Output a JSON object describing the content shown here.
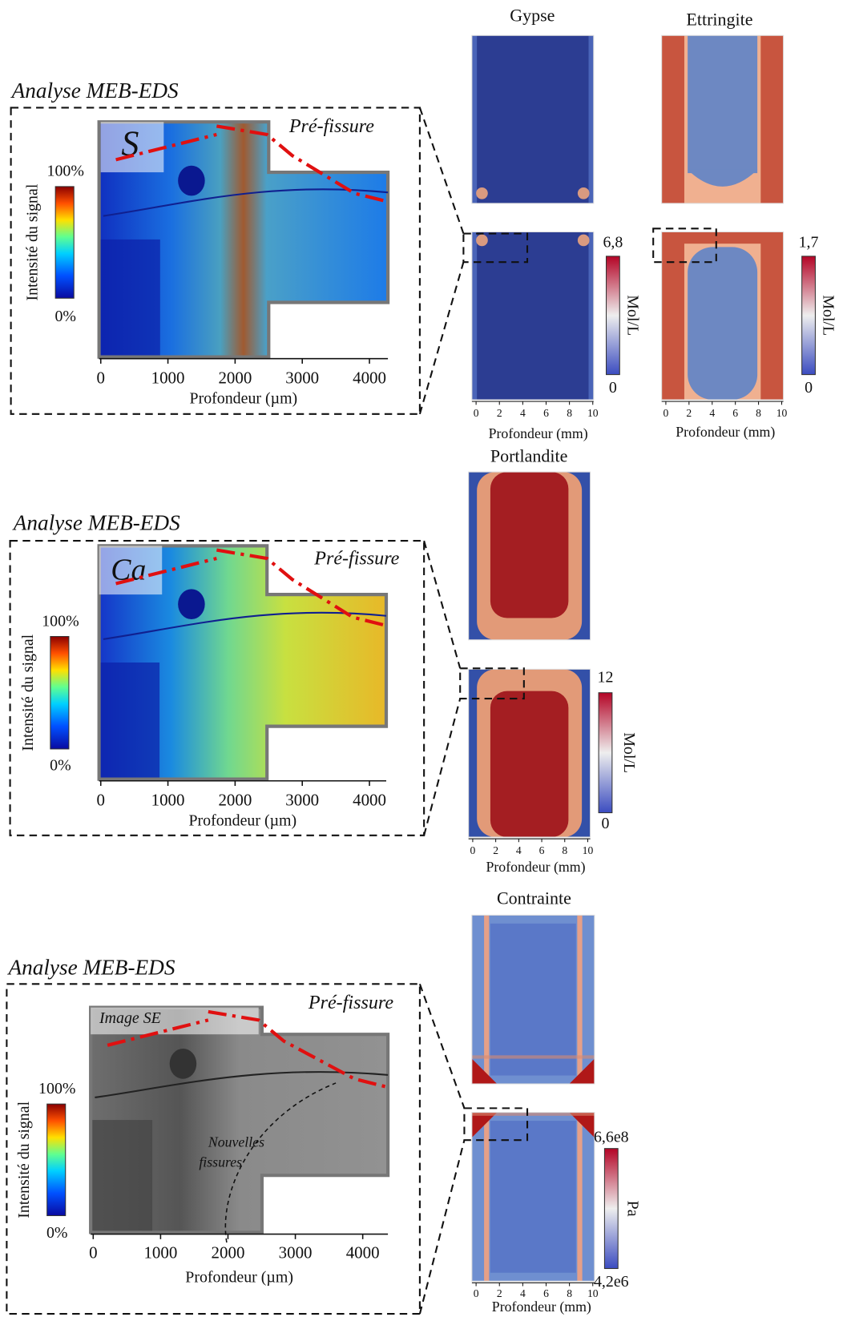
{
  "panels": [
    {
      "header": "Analyse MEB-EDS",
      "element": "S",
      "crack_label": "Pré-fissure",
      "colorbar": {
        "title": "Intensité du signal",
        "max": "100%",
        "min": "0%"
      },
      "xticks": [
        0,
        1000,
        2000,
        3000,
        4000
      ],
      "xlabel": "Profondeur (µm)",
      "simulations": [
        {
          "title": "Gypse",
          "max": "6,8",
          "min": "0",
          "unit": "Mol/L",
          "xticks": [
            0,
            2,
            4,
            6,
            8,
            10
          ],
          "xlabel": "Profondeur (mm)"
        },
        {
          "title": "Ettringite",
          "max": "1,7",
          "min": "0",
          "unit": "Mol/L",
          "xticks": [
            0,
            2,
            4,
            6,
            8,
            10
          ],
          "xlabel": "Profondeur (mm)"
        }
      ]
    },
    {
      "header": "Analyse MEB-EDS",
      "element": "Ca",
      "crack_label": "Pré-fissure",
      "colorbar": {
        "title": "Intensité du signal",
        "max": "100%",
        "min": "0%"
      },
      "xticks": [
        0,
        1000,
        2000,
        3000,
        4000
      ],
      "xlabel": "Profondeur (µm)",
      "simulations": [
        {
          "title": "Portlandite",
          "max": "12",
          "min": "0",
          "unit": "Mol/L",
          "xticks": [
            0,
            2,
            4,
            6,
            8,
            10
          ],
          "xlabel": "Profondeur (mm)"
        }
      ]
    },
    {
      "header": "Analyse MEB-EDS",
      "element": "Image SE",
      "crack_label": "Pré-fissure",
      "annotation": [
        "Nouvelles",
        "fissures"
      ],
      "colorbar": {
        "title": "Intensité du signal",
        "max": "100%",
        "min": "0%"
      },
      "xticks": [
        0,
        1000,
        2000,
        3000,
        4000
      ],
      "xlabel": "Profondeur (µm)",
      "simulations": [
        {
          "title": "Contrainte",
          "max": "6,6e8",
          "min": "4,2e6",
          "unit": "Pa",
          "xticks": [
            0,
            2,
            4,
            6,
            8,
            10
          ],
          "xlabel": "Profondeur (mm)"
        }
      ]
    }
  ]
}
